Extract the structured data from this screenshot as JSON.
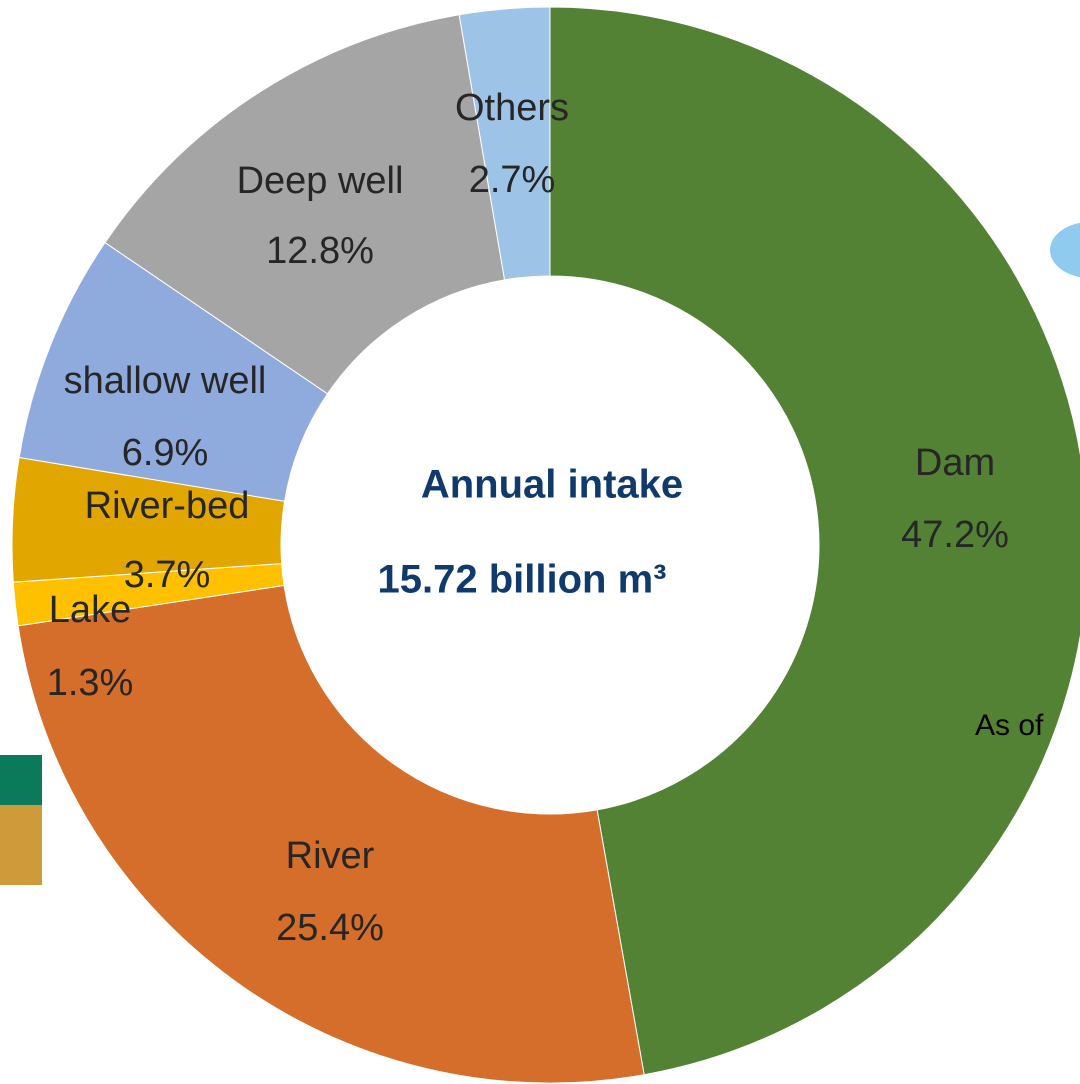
{
  "chart_data": {
    "type": "donut",
    "center_text": [
      "Annual intake",
      "15.72 billion m³"
    ],
    "categories": [
      "Dam",
      "River",
      "Lake",
      "River-bed",
      "shallow well",
      "Deep well",
      "Others"
    ],
    "values": [
      47.2,
      25.4,
      1.3,
      3.7,
      6.9,
      12.8,
      2.7
    ],
    "value_labels": [
      "47.2%",
      "25.4%",
      "1.3%",
      "3.7%",
      "6.9%",
      "12.8%",
      "2.7%"
    ],
    "colors": [
      "#548235",
      "#d46e2a",
      "#ffc000",
      "#e2a600",
      "#8faadc",
      "#a5a5a5",
      "#9dc3e6"
    ],
    "note": "As of"
  }
}
